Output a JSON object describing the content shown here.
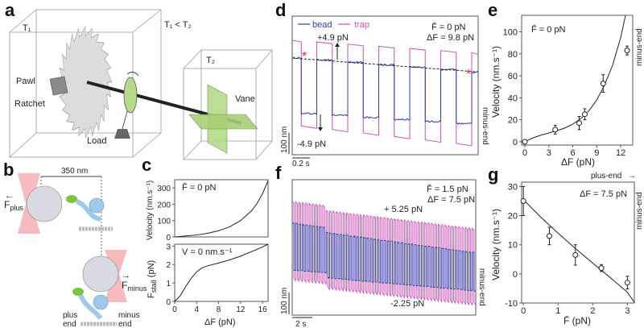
{
  "panels": {
    "a": {
      "label": "a",
      "t1": "T₁",
      "cond": "T₁ < T₂",
      "t2": "T₂",
      "pawl": "Pawl",
      "ratchet": "Ratchet",
      "load": "Load",
      "vane": "Vane",
      "colors": {
        "ratchet": "#d8d8d8",
        "green": "#b6d98a",
        "pawl": "#8a8a8a",
        "axle": "#222222"
      }
    },
    "b": {
      "label": "b",
      "distance": "350 nm",
      "f_plus": "F",
      "f_plus_sub": "plus",
      "f_minus": "F",
      "f_minus_sub": "minus",
      "plus_end_1": "plus",
      "plus_end_2": "end",
      "minus_end_1": "minus",
      "minus_end_2": "end",
      "colors": {
        "trap": "#f4a3a8",
        "bead": "#d9d9e2",
        "motor": "#9ec9ea",
        "head": "#7cc242",
        "linker": "#f08a24"
      }
    },
    "c": {
      "label": "c",
      "top_note": "F̄ = 0 pN",
      "bottom_note": "V = 0 nm.s⁻¹",
      "ylabel_top": "Velocity (nm.s⁻¹)",
      "ylabel_bottom": "F",
      "ylabel_bottom_sub": "stall",
      "ylabel_bottom_unit": " (pN)",
      "xlabel": "ΔF (pN)"
    },
    "d": {
      "label": "d",
      "legend_bead": "bead",
      "legend_trap": "trap",
      "note1": "F̄ = 0 pN",
      "note2": "ΔF = 9.8 pN",
      "plus_force": "+4.9 pN",
      "minus_force": "-4.9 pN",
      "scale_y": "100 nm",
      "scale_x": "0.2 s",
      "direction": "minus-end",
      "asterisk": "*"
    },
    "e": {
      "label": "e",
      "note": "F̄ = 0 pN",
      "direction": "minus-end"
    },
    "f": {
      "label": "f",
      "note1": "F̄ = 1.5 pN",
      "note2": "ΔF = 7.5 pN",
      "plus_force": "+ 5.25 pN",
      "minus_force": "-2.25 pN",
      "scale_y": "100 nm",
      "scale_x": "2 s",
      "direction": "minus-end"
    },
    "g": {
      "label": "g",
      "note": "ΔF = 7.5 pN",
      "direction_top": "plus-end",
      "direction": "minus-end"
    }
  },
  "colors": {
    "bead": "#2b3bb0",
    "trap": "#d24fb5",
    "asterisk": "#e8262a"
  },
  "chart_data": [
    {
      "id": "c_top",
      "type": "line",
      "xlabel": "ΔF (pN)",
      "ylabel": "Velocity (nm.s⁻¹)",
      "xlim": [
        0,
        17
      ],
      "ylim": [
        0,
        350
      ],
      "yticks": [
        0,
        100,
        200,
        300
      ],
      "xticks": [
        0,
        4,
        8,
        12,
        16
      ],
      "x": [
        0,
        2,
        4,
        6,
        8,
        10,
        12,
        14,
        15,
        16,
        17
      ],
      "y": [
        0,
        6,
        12,
        22,
        38,
        62,
        100,
        160,
        205,
        265,
        345
      ]
    },
    {
      "id": "c_bottom",
      "type": "line",
      "xlabel": "ΔF (pN)",
      "ylabel": "F_stall (pN)",
      "xlim": [
        0,
        17
      ],
      "ylim": [
        0,
        3.1
      ],
      "yticks": [
        0,
        1,
        2,
        3
      ],
      "xticks": [
        0,
        4,
        8,
        12,
        16
      ],
      "x": [
        0,
        1,
        2,
        3,
        4,
        5,
        6,
        8,
        10,
        12,
        14,
        16,
        17
      ],
      "y": [
        0,
        0.3,
        0.8,
        1.25,
        1.6,
        1.82,
        1.93,
        2.08,
        2.25,
        2.45,
        2.7,
        2.95,
        3.1
      ]
    },
    {
      "id": "e",
      "type": "scatter",
      "xlabel": "ΔF (pN)",
      "ylabel": "Velocity (nm.s⁻¹)",
      "xlim": [
        -0.4,
        13.5
      ],
      "ylim": [
        -3,
        115
      ],
      "xticks": [
        0,
        3,
        6,
        9,
        12
      ],
      "yticks": [
        0,
        20,
        40,
        60,
        80,
        100
      ],
      "points": {
        "x": [
          0,
          3.8,
          6.8,
          7.5,
          9.8,
          12.8
        ],
        "y": [
          0,
          11,
          17,
          25,
          53,
          83
        ],
        "err": [
          0,
          4,
          6,
          5,
          8,
          4
        ]
      },
      "fit": {
        "x": [
          0,
          1,
          2,
          3,
          4,
          5,
          6,
          7,
          8,
          9,
          10,
          11,
          12,
          12.6
        ],
        "y": [
          0,
          3.5,
          6,
          8,
          10,
          12.5,
          16,
          21,
          28,
          38,
          52,
          70,
          95,
          115
        ]
      }
    },
    {
      "id": "g",
      "type": "scatter",
      "xlabel": "F̄ (pN)",
      "ylabel": "Velocity (nm.s⁻¹)",
      "xlim": [
        -0.05,
        3.2
      ],
      "ylim": [
        -10,
        31.5
      ],
      "xticks": [
        0,
        1,
        2,
        3
      ],
      "yticks": [
        -10,
        0,
        10,
        20,
        30
      ],
      "points": {
        "x": [
          0,
          0.75,
          1.5,
          2.25,
          3
        ],
        "y": [
          25,
          13,
          6.5,
          2,
          -3
        ],
        "err": [
          5,
          3,
          3.5,
          1.2,
          2.2
        ]
      },
      "fit": {
        "x": [
          0,
          0.5,
          1,
          1.5,
          2,
          2.5,
          3,
          3.2
        ],
        "y": [
          25.5,
          19.5,
          14,
          8.7,
          3.7,
          -1.2,
          -6.3,
          -9.8
        ]
      }
    },
    {
      "id": "d",
      "type": "line",
      "series": [
        "bead",
        "trap"
      ],
      "cycles": 6
    },
    {
      "id": "f",
      "type": "line",
      "series": [
        "bead",
        "trap"
      ],
      "cycles": 54
    }
  ]
}
